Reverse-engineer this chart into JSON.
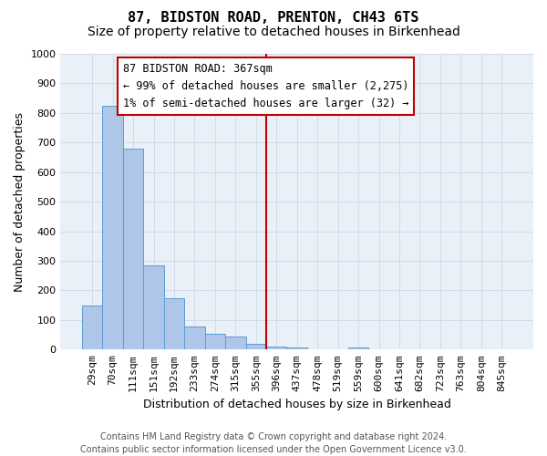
{
  "title": "87, BIDSTON ROAD, PRENTON, CH43 6TS",
  "subtitle": "Size of property relative to detached houses in Birkenhead",
  "xlabel": "Distribution of detached houses by size in Birkenhead",
  "ylabel": "Number of detached properties",
  "bins": [
    "29sqm",
    "70sqm",
    "111sqm",
    "151sqm",
    "192sqm",
    "233sqm",
    "274sqm",
    "315sqm",
    "355sqm",
    "396sqm",
    "437sqm",
    "478sqm",
    "519sqm",
    "559sqm",
    "600sqm",
    "641sqm",
    "682sqm",
    "723sqm",
    "763sqm",
    "804sqm",
    "845sqm"
  ],
  "bar_heights": [
    150,
    825,
    680,
    285,
    175,
    78,
    52,
    43,
    20,
    10,
    8,
    0,
    0,
    8,
    0,
    0,
    0,
    0,
    0,
    0,
    0
  ],
  "bar_color": "#aec6e8",
  "bar_edge_color": "#5b9bd5",
  "vline_color": "#c00000",
  "vline_x": 8.5,
  "annotation_text": "87 BIDSTON ROAD: 367sqm\n← 99% of detached houses are smaller (2,275)\n1% of semi-detached houses are larger (32) →",
  "annotation_box_color": "#c00000",
  "annotation_bg": "#ffffff",
  "ylim": [
    0,
    1000
  ],
  "yticks": [
    0,
    100,
    200,
    300,
    400,
    500,
    600,
    700,
    800,
    900,
    1000
  ],
  "grid_color": "#d0dce8",
  "bg_color": "#eaf0f8",
  "footer": "Contains HM Land Registry data © Crown copyright and database right 2024.\nContains public sector information licensed under the Open Government Licence v3.0.",
  "title_fontsize": 11,
  "subtitle_fontsize": 10,
  "axis_label_fontsize": 9,
  "tick_fontsize": 8,
  "footer_fontsize": 7
}
